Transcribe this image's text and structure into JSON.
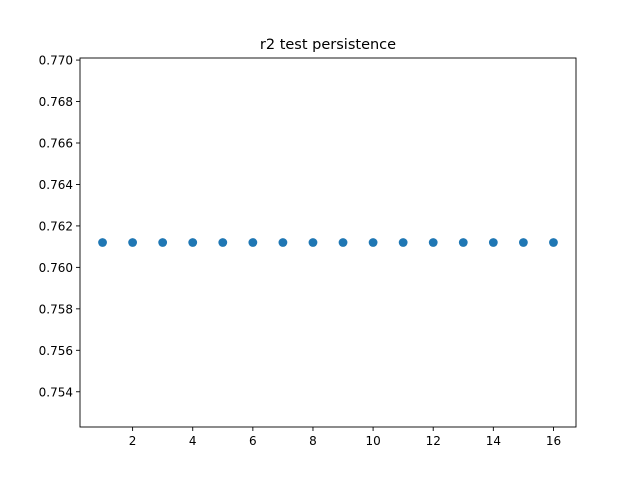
{
  "chart_data": {
    "type": "scatter",
    "title": "r2 test persistence",
    "xlabel": "",
    "ylabel": "",
    "x": [
      1,
      2,
      3,
      4,
      5,
      6,
      7,
      8,
      9,
      10,
      11,
      12,
      13,
      14,
      15,
      16
    ],
    "y": [
      0.7612,
      0.7612,
      0.7612,
      0.7612,
      0.7612,
      0.7612,
      0.7612,
      0.7612,
      0.7612,
      0.7612,
      0.7612,
      0.7612,
      0.7612,
      0.7612,
      0.7612,
      0.7612
    ],
    "xlim": [
      0.25,
      16.75
    ],
    "ylim": [
      0.7523,
      0.7701
    ],
    "xticks": [
      2,
      4,
      6,
      8,
      10,
      12,
      14,
      16
    ],
    "xtick_labels": [
      "2",
      "4",
      "6",
      "8",
      "10",
      "12",
      "14",
      "16"
    ],
    "yticks": [
      0.754,
      0.756,
      0.758,
      0.76,
      0.762,
      0.764,
      0.766,
      0.768,
      0.77
    ],
    "ytick_labels": [
      "0.754",
      "0.756",
      "0.758",
      "0.760",
      "0.762",
      "0.764",
      "0.766",
      "0.768",
      "0.770"
    ],
    "marker_color": "#1f77b4",
    "grid": false,
    "legend": false
  }
}
